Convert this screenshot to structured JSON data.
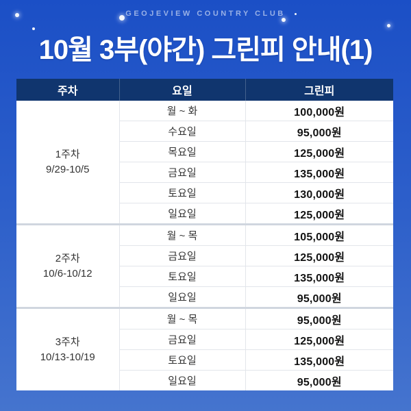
{
  "header": {
    "club_name": "GEOJEVIEW COUNTRY CLUB",
    "title": "10월 3부(야간) 그린피 안내(1)"
  },
  "colors": {
    "background_top": "#1b4fc6",
    "background_bottom": "#4574ce",
    "table_header_bg": "#10356e",
    "row_divider": "#e2e5ea",
    "group_divider": "#d0d6df",
    "title_text": "#ffffff",
    "fee_text": "#121212"
  },
  "table": {
    "columns": [
      "주차",
      "요일",
      "그린피"
    ],
    "groups": [
      {
        "week": "1주차",
        "date_range": "9/29-10/5",
        "rows": [
          {
            "day": "월 ~ 화",
            "fee": "100,000원"
          },
          {
            "day": "수요일",
            "fee": "95,000원"
          },
          {
            "day": "목요일",
            "fee": "125,000원"
          },
          {
            "day": "금요일",
            "fee": "135,000원"
          },
          {
            "day": "토요일",
            "fee": "130,000원"
          },
          {
            "day": "일요일",
            "fee": "125,000원"
          }
        ]
      },
      {
        "week": "2주차",
        "date_range": "10/6-10/12",
        "rows": [
          {
            "day": "월 ~ 목",
            "fee": "105,000원"
          },
          {
            "day": "금요일",
            "fee": "125,000원"
          },
          {
            "day": "토요일",
            "fee": "135,000원"
          },
          {
            "day": "일요일",
            "fee": "95,000원"
          }
        ]
      },
      {
        "week": "3주차",
        "date_range": "10/13-10/19",
        "rows": [
          {
            "day": "월 ~ 목",
            "fee": "95,000원"
          },
          {
            "day": "금요일",
            "fee": "125,000원"
          },
          {
            "day": "토요일",
            "fee": "135,000원"
          },
          {
            "day": "일요일",
            "fee": "95,000원"
          }
        ]
      }
    ]
  }
}
